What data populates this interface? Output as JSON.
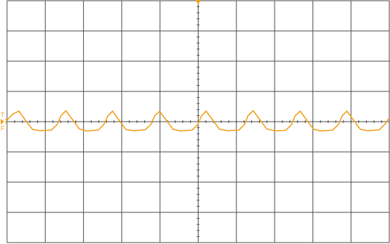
{
  "chart_data": {
    "type": "line",
    "markers": [
      "T",
      "1",
      "F"
    ],
    "xlim": [
      -5,
      5
    ],
    "ylim": [
      -4,
      4
    ],
    "xticks": [
      -5,
      -4,
      -3,
      -2,
      -1,
      0,
      1,
      2,
      3,
      4,
      5
    ],
    "yticks": [
      -4,
      -3,
      -2,
      -1,
      0,
      1,
      2,
      3,
      4
    ],
    "grid": true,
    "series": [
      {
        "name": "1",
        "color": "#f2a01e",
        "x": [
          -5.0,
          -4.85,
          -4.69,
          -4.49,
          -4.34,
          -4.14,
          -3.84,
          -3.69,
          -3.59,
          -3.46,
          -3.26,
          -3.11,
          -2.91,
          -2.61,
          -2.46,
          -2.36,
          -2.24,
          -2.04,
          -1.89,
          -1.69,
          -1.39,
          -1.24,
          -1.14,
          -1.01,
          -0.81,
          -0.66,
          -0.46,
          -0.16,
          -0.01,
          0.09,
          0.21,
          0.41,
          0.56,
          0.76,
          1.06,
          1.21,
          1.31,
          1.44,
          1.64,
          1.79,
          1.99,
          2.29,
          2.44,
          2.54,
          2.67,
          2.87,
          3.02,
          3.22,
          3.52,
          3.67,
          3.77,
          3.89,
          4.09,
          4.24,
          4.44,
          4.74,
          4.89,
          5.0
        ],
        "values": [
          0.05,
          0.25,
          0.35,
          0.0,
          -0.25,
          -0.3,
          -0.28,
          -0.1,
          0.2,
          0.36,
          0.02,
          -0.24,
          -0.31,
          -0.28,
          -0.08,
          0.2,
          0.35,
          0.0,
          -0.26,
          -0.3,
          -0.27,
          -0.1,
          0.19,
          0.34,
          0.01,
          -0.25,
          -0.31,
          -0.28,
          -0.09,
          0.2,
          0.35,
          0.0,
          -0.25,
          -0.3,
          -0.28,
          -0.1,
          0.21,
          0.36,
          0.02,
          -0.24,
          -0.3,
          -0.29,
          -0.1,
          0.2,
          0.35,
          0.0,
          -0.25,
          -0.31,
          -0.28,
          -0.09,
          0.2,
          0.35,
          0.01,
          -0.25,
          -0.3,
          -0.27,
          -0.08,
          0.12
        ]
      }
    ]
  }
}
